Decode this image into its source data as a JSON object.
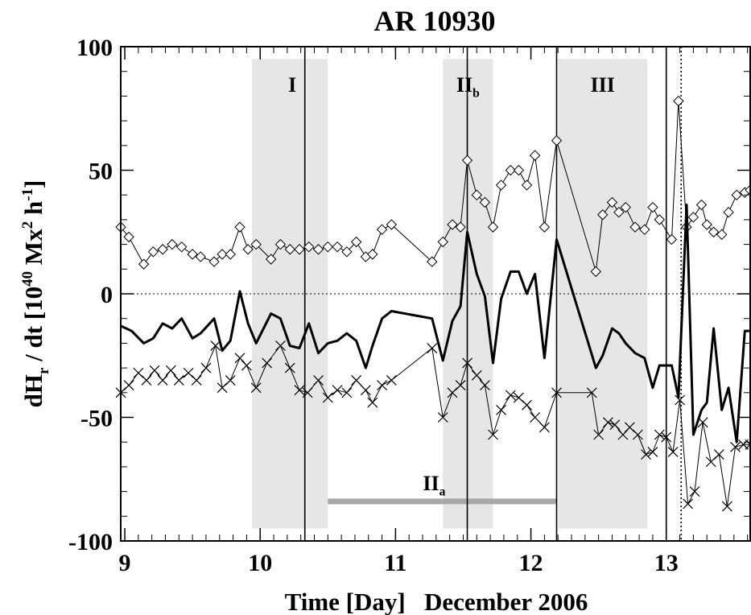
{
  "chart_data": {
    "type": "line",
    "title": "AR 10930",
    "xlabel": "Time [Day]   December 2006",
    "ylabel_parts": [
      "dH",
      "r",
      " / dt   [10",
      "40",
      " Mx",
      "2",
      " h",
      "-1",
      "]"
    ],
    "xlim": [
      8.97,
      13.62
    ],
    "ylim": [
      -100,
      100
    ],
    "x_ticks": [
      9,
      10,
      11,
      12,
      13
    ],
    "x_tick_labels": [
      "9",
      "10",
      "11",
      "12",
      "13"
    ],
    "y_ticks": [
      -100,
      -50,
      0,
      50,
      100
    ],
    "y_tick_labels": [
      "-100",
      "-50",
      "0",
      "50",
      "100"
    ],
    "zero_line": true,
    "regions": [
      {
        "label": "I",
        "sub": "",
        "x0": 9.94,
        "x1": 10.5
      },
      {
        "label": "II",
        "sub": "b",
        "x0": 11.35,
        "x1": 11.72
      },
      {
        "label": "III",
        "sub": "",
        "x0": 12.2,
        "x1": 12.86
      }
    ],
    "bar_region": {
      "label": "II",
      "sub": "a",
      "x0": 10.5,
      "x1": 12.19,
      "y": -84
    },
    "vlines_solid": [
      10.33,
      11.53,
      12.19,
      13.0
    ],
    "vlines_dotted": [
      13.11
    ],
    "series": [
      {
        "marker": "diamond",
        "x": [
          8.97,
          9.03,
          9.14,
          9.21,
          9.28,
          9.35,
          9.42,
          9.5,
          9.56,
          9.66,
          9.72,
          9.78,
          9.85,
          9.91,
          9.97,
          10.08,
          10.15,
          10.22,
          10.29,
          10.36,
          10.43,
          10.5,
          10.57,
          10.64,
          10.71,
          10.78,
          10.83,
          10.9,
          10.97,
          11.27,
          11.35,
          11.42,
          11.48,
          11.53,
          11.6,
          11.66,
          11.72,
          11.78,
          11.85,
          11.91,
          11.97,
          12.03,
          12.1,
          12.19,
          12.48,
          12.53,
          12.6,
          12.65,
          12.7,
          12.77,
          12.84,
          12.9,
          12.95,
          13.04,
          13.09,
          13.15,
          13.2,
          13.26,
          13.3,
          13.35,
          13.41,
          13.46,
          13.52,
          13.58,
          13.62
        ],
        "y": [
          27,
          23,
          12,
          17,
          18,
          20,
          19,
          16,
          15,
          13,
          16,
          16,
          27,
          18,
          20,
          14,
          20,
          18,
          18,
          19,
          18,
          19,
          19,
          17,
          21,
          15,
          16,
          26,
          28,
          13,
          21,
          28,
          27,
          54,
          40,
          37,
          27,
          44,
          50,
          50,
          44,
          56,
          27,
          62,
          9,
          32,
          37,
          33,
          35,
          27,
          26,
          35,
          30,
          22,
          78,
          27,
          31,
          36,
          28,
          25,
          24,
          33,
          40,
          41,
          42
        ],
        "weight": "thin"
      },
      {
        "marker": "none",
        "x": [
          8.97,
          9.05,
          9.14,
          9.21,
          9.28,
          9.35,
          9.42,
          9.5,
          9.56,
          9.66,
          9.72,
          9.78,
          9.85,
          9.91,
          9.97,
          10.08,
          10.15,
          10.22,
          10.29,
          10.36,
          10.43,
          10.5,
          10.57,
          10.64,
          10.71,
          10.78,
          10.83,
          10.9,
          10.97,
          11.27,
          11.35,
          11.42,
          11.48,
          11.53,
          11.6,
          11.66,
          11.72,
          11.78,
          11.85,
          11.91,
          11.97,
          12.03,
          12.1,
          12.19,
          12.48,
          12.53,
          12.6,
          12.65,
          12.7,
          12.77,
          12.84,
          12.9,
          12.95,
          13.04,
          13.09,
          13.15,
          13.2,
          13.26,
          13.3,
          13.35,
          13.41,
          13.46,
          13.52,
          13.58,
          13.62
        ],
        "y": [
          -13,
          -15,
          -20,
          -18,
          -12,
          -14,
          -10,
          -18,
          -16,
          -10,
          -23,
          -19,
          1,
          -12,
          -20,
          -8,
          -10,
          -21,
          -22,
          -12,
          -24,
          -20,
          -19,
          -16,
          -19,
          -30,
          -21,
          -10,
          -7,
          -10,
          -27,
          -11,
          -5,
          25,
          8,
          -1,
          -28,
          -2,
          9,
          9,
          0,
          8,
          -26,
          22,
          -30,
          -25,
          -14,
          -16,
          -20,
          -24,
          -26,
          -38,
          -29,
          -29,
          -42,
          36,
          -57,
          -47,
          -44,
          -14,
          -47,
          -38,
          -60,
          -15,
          -15
        ],
        "weight": "thick"
      },
      {
        "marker": "x",
        "x": [
          8.97,
          9.03,
          9.1,
          9.16,
          9.22,
          9.28,
          9.34,
          9.4,
          9.47,
          9.53,
          9.6,
          9.67,
          9.72,
          9.78,
          9.85,
          9.9,
          9.97,
          10.05,
          10.15,
          10.22,
          10.29,
          10.35,
          10.43,
          10.5,
          10.57,
          10.64,
          10.71,
          10.78,
          10.83,
          10.9,
          10.97,
          11.27,
          11.35,
          11.42,
          11.48,
          11.53,
          11.6,
          11.66,
          11.72,
          11.78,
          11.85,
          11.91,
          11.97,
          12.03,
          12.1,
          12.19,
          12.45,
          12.5,
          12.57,
          12.62,
          12.68,
          12.73,
          12.79,
          12.85,
          12.9,
          12.95,
          13.0,
          13.05,
          13.1,
          13.16,
          13.21,
          13.27,
          13.33,
          13.39,
          13.45,
          13.51,
          13.57,
          13.62
        ],
        "y": [
          -40,
          -37,
          -32,
          -35,
          -31,
          -35,
          -31,
          -35,
          -32,
          -35,
          -30,
          -21,
          -38,
          -35,
          -26,
          -29,
          -38,
          -28,
          -21,
          -30,
          -39,
          -40,
          -35,
          -42,
          -39,
          -40,
          -35,
          -39,
          -44,
          -37,
          -35,
          -22,
          -50,
          -40,
          -37,
          -28,
          -33,
          -37,
          -57,
          -47,
          -41,
          -42,
          -45,
          -50,
          -54,
          -40,
          -40,
          -57,
          -52,
          -53,
          -57,
          -54,
          -57,
          -65,
          -64,
          -57,
          -58,
          -64,
          -43,
          -85,
          -80,
          -52,
          -68,
          -65,
          -86,
          -62,
          -61,
          -61
        ],
        "weight": "thin"
      }
    ]
  }
}
